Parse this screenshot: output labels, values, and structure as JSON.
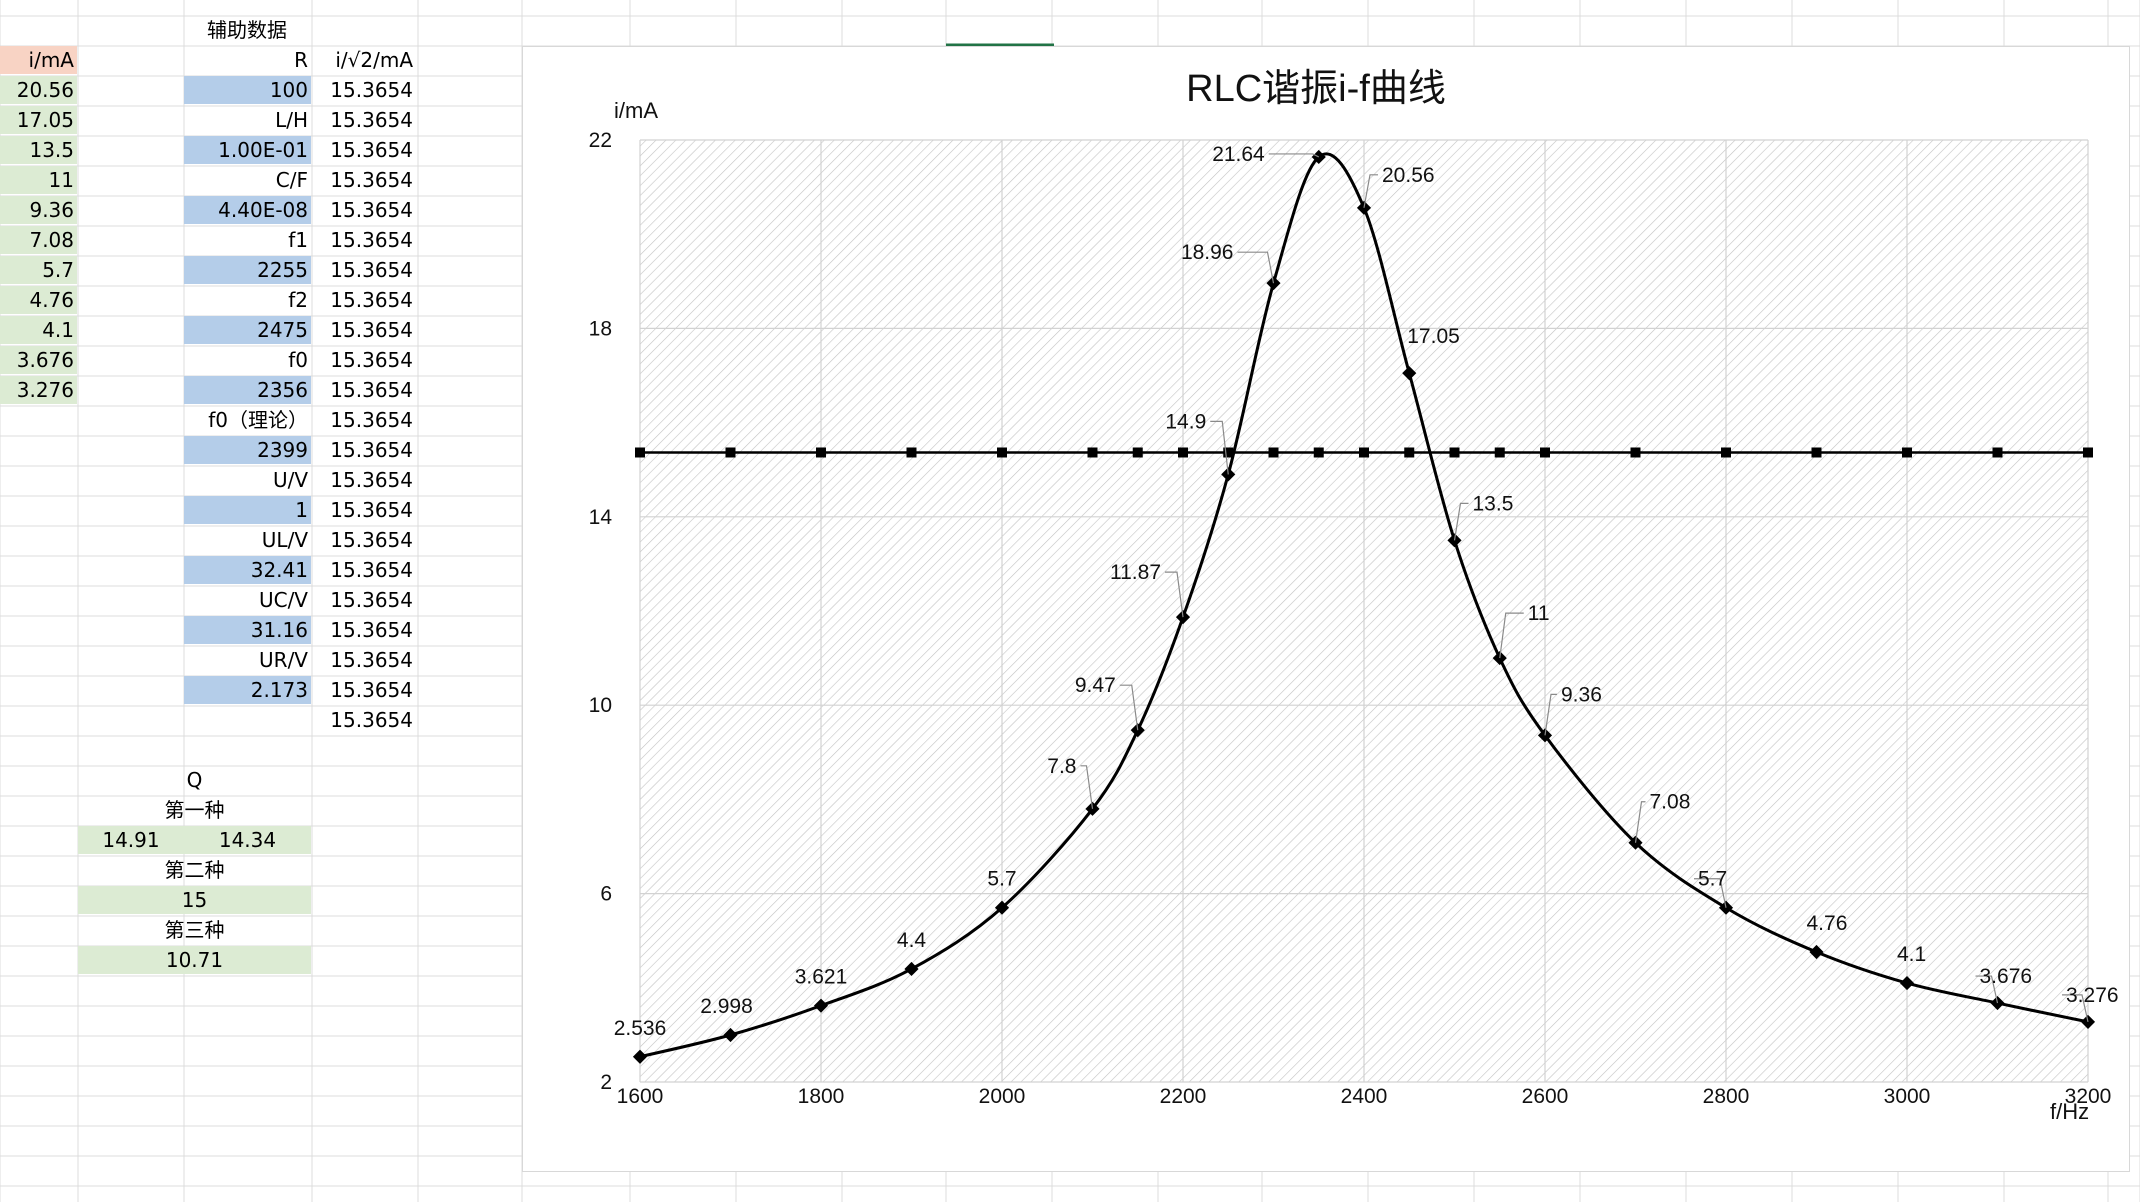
{
  "sheet": {
    "col_a_header": "i/mA",
    "col_a": [
      "20.56",
      "17.05",
      "13.5",
      "11",
      "9.36",
      "7.08",
      "5.7",
      "4.76",
      "4.1",
      "3.676",
      "3.276"
    ],
    "aux_header": "辅助数据",
    "col_c": [
      "R",
      "100",
      "L/H",
      "1.00E-01",
      "C/F",
      "4.40E-08",
      "f1",
      "2255",
      "f2",
      "2475",
      "f0",
      "2356",
      "f0（理论）",
      "2399",
      "U/V",
      "1",
      "UL/V",
      "32.41",
      "UC/V",
      "31.16",
      "UR/V",
      "2.173"
    ],
    "col_d_header": "i/√2/mA",
    "col_d": [
      "15.3654",
      "15.3654",
      "15.3654",
      "15.3654",
      "15.3654",
      "15.3654",
      "15.3654",
      "15.3654",
      "15.3654",
      "15.3654",
      "15.3654",
      "15.3654",
      "15.3654",
      "15.3654",
      "15.3654",
      "15.3654",
      "15.3654",
      "15.3654",
      "15.3654",
      "15.3654",
      "15.3654",
      "15.3654"
    ],
    "q_label": "Q",
    "method1_label": "第一种",
    "method1_values": [
      "14.91",
      "14.34"
    ],
    "method2_label": "第二种",
    "method2_value": "15",
    "method3_label": "第三种",
    "method3_value": "10.71"
  },
  "chart_data": {
    "type": "line",
    "title": "RLC谐振i-f曲线",
    "xlabel": "f/Hz",
    "ylabel": "i/mA",
    "xlim": [
      1600,
      3200
    ],
    "ylim": [
      2,
      22
    ],
    "xticks": [
      1600,
      1800,
      2000,
      2200,
      2400,
      2600,
      2800,
      3000,
      3200
    ],
    "yticks": [
      2,
      6,
      10,
      14,
      18,
      22
    ],
    "grid": true,
    "series": [
      {
        "x": [
          1600,
          1700,
          1800,
          1900,
          2000,
          2100,
          2150,
          2200,
          2250,
          2300,
          2350,
          2400,
          2450,
          2500,
          2550,
          2600,
          2700,
          2800,
          2900,
          3000,
          3100,
          3200
        ],
        "y": [
          2.536,
          2.998,
          3.621,
          4.4,
          5.7,
          7.8,
          9.47,
          11.87,
          14.9,
          18.96,
          21.64,
          20.56,
          17.05,
          13.5,
          11,
          9.36,
          7.08,
          5.7,
          4.76,
          4.1,
          3.676,
          3.276
        ],
        "labels": [
          "2.536",
          "2.998",
          "3.621",
          "4.4",
          "5.7",
          "7.8",
          "9.47",
          "11.87",
          "14.9",
          "18.96",
          "21.64",
          "20.56",
          "17.05",
          "13.5",
          "11",
          "9.36",
          "7.08",
          "5.7",
          "4.76",
          "4.1",
          "3.676",
          "3.276"
        ],
        "marker": "diamond",
        "color": "#000000"
      },
      {
        "x": [
          1600,
          1700,
          1800,
          1900,
          2000,
          2100,
          2150,
          2200,
          2250,
          2300,
          2350,
          2400,
          2450,
          2500,
          2550,
          2600,
          2700,
          2800,
          2900,
          3000,
          3100,
          3200
        ],
        "y": [
          15.3654,
          15.3654,
          15.3654,
          15.3654,
          15.3654,
          15.3654,
          15.3654,
          15.3654,
          15.3654,
          15.3654,
          15.3654,
          15.3654,
          15.3654,
          15.3654,
          15.3654,
          15.3654,
          15.3654,
          15.3654,
          15.3654,
          15.3654,
          15.3654,
          15.3654
        ],
        "marker": "square",
        "color": "#000000"
      }
    ]
  }
}
